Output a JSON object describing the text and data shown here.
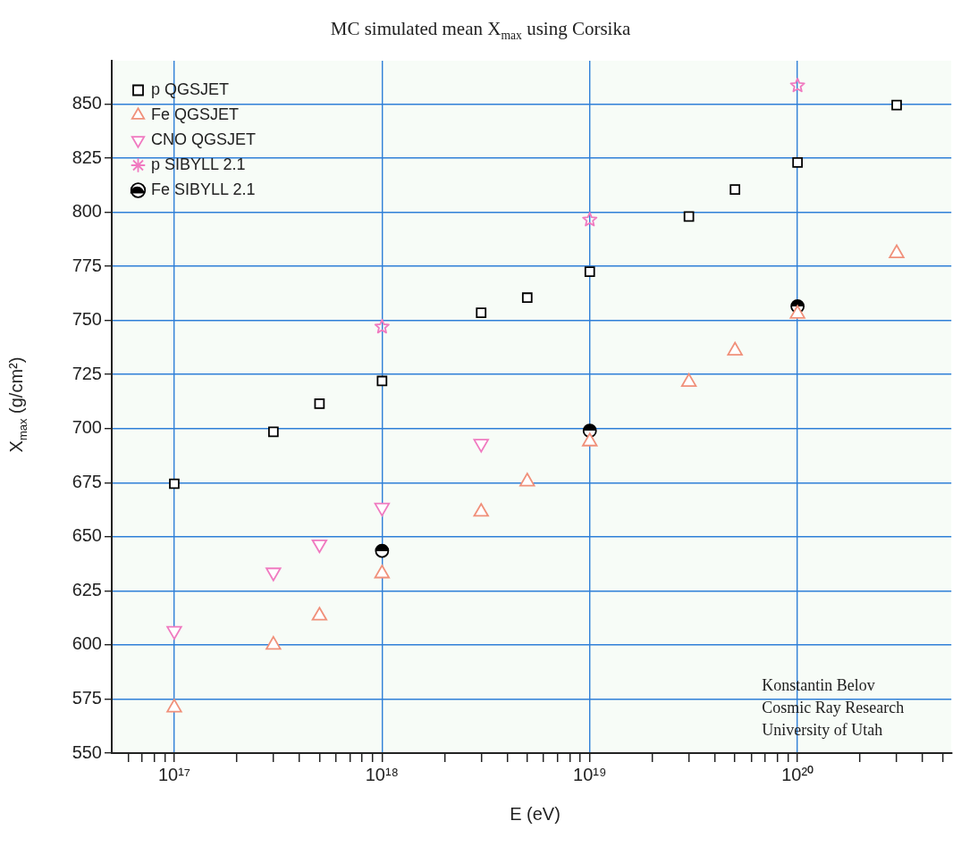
{
  "chart_data": {
    "type": "scatter",
    "title": "MC simulated mean X$_{max}$ using Corsika",
    "xlabel": "E (eV)",
    "ylabel": "X$_{max}$ (g/cm²)",
    "log": "x",
    "grid": true,
    "legend": "top left",
    "xlim": [
      5e+16,
      5.5e+20
    ],
    "xticks": [
      {
        "value": 6e+16,
        "label": null
      },
      {
        "value": 7e+16,
        "label": null
      },
      {
        "value": 8e+16,
        "label": null
      },
      {
        "value": 9e+16,
        "label": null
      },
      {
        "value": 1e+17,
        "label": "10¹⁷"
      },
      {
        "value": 2e+17,
        "label": null
      },
      {
        "value": 3e+17,
        "label": null
      },
      {
        "value": 4e+17,
        "label": null
      },
      {
        "value": 5e+17,
        "label": null
      },
      {
        "value": 6e+17,
        "label": null
      },
      {
        "value": 7e+17,
        "label": null
      },
      {
        "value": 8e+17,
        "label": null
      },
      {
        "value": 9e+17,
        "label": null
      },
      {
        "value": 1e+18,
        "label": "10¹⁸"
      },
      {
        "value": 2e+18,
        "label": null
      },
      {
        "value": 3e+18,
        "label": null
      },
      {
        "value": 4e+18,
        "label": null
      },
      {
        "value": 5e+18,
        "label": null
      },
      {
        "value": 6e+18,
        "label": null
      },
      {
        "value": 7e+18,
        "label": null
      },
      {
        "value": 8e+18,
        "label": null
      },
      {
        "value": 9e+18,
        "label": null
      },
      {
        "value": 1e+19,
        "label": "10¹⁹"
      },
      {
        "value": 2e+19,
        "label": null
      },
      {
        "value": 3e+19,
        "label": null
      },
      {
        "value": 4e+19,
        "label": null
      },
      {
        "value": 5e+19,
        "label": null
      },
      {
        "value": 6e+19,
        "label": null
      },
      {
        "value": 7e+19,
        "label": null
      },
      {
        "value": 8e+19,
        "label": null
      },
      {
        "value": 9e+19,
        "label": null
      },
      {
        "value": 1e+20,
        "label": "10²⁰"
      },
      {
        "value": 2e+20,
        "label": null
      },
      {
        "value": 3e+20,
        "label": null
      },
      {
        "value": 4e+20,
        "label": null
      },
      {
        "value": 5e+20,
        "label": null
      }
    ],
    "ylim": [
      550,
      870
    ],
    "yticks": [
      550,
      575,
      600,
      625,
      650,
      675,
      700,
      725,
      750,
      775,
      800,
      825,
      850
    ],
    "series": [
      {
        "name": "p QGSJET",
        "color": "#000000",
        "marker": "square",
        "x": [
          1e+17,
          3e+17,
          5e+17,
          1e+18,
          3e+18,
          5e+18,
          1e+19,
          3e+19,
          5e+19,
          1e+20,
          3e+20
        ],
        "values": [
          674.5,
          698.5,
          711.5,
          722,
          753.5,
          760.5,
          772.5,
          798,
          810.5,
          823,
          849.5
        ]
      },
      {
        "name": "Fe QGSJET",
        "color": "#f0907a",
        "marker": "triangle",
        "x": [
          1e+17,
          3e+17,
          5e+17,
          1e+18,
          3e+18,
          5e+18,
          1e+19,
          3e+19,
          5e+19,
          1e+20,
          3e+20
        ],
        "values": [
          571,
          600,
          613.5,
          633,
          661.5,
          675.5,
          694,
          721.5,
          736,
          753,
          781
        ]
      },
      {
        "name": "CNO QGSJET",
        "color": "#f07ac0",
        "marker": "triangle_down",
        "x": [
          1e+17,
          3e+17,
          5e+17,
          1e+18,
          3e+18
        ],
        "values": [
          606.5,
          633.5,
          646.5,
          663.5,
          693
        ]
      },
      {
        "name": "p SIBYLL 2.1",
        "color": "#f07ac0",
        "marker": "star",
        "x": [
          1e+18,
          1e+19,
          1e+20
        ],
        "values": [
          747,
          796.5,
          858.5
        ]
      },
      {
        "name": "Fe SIBYLL 2.1",
        "color": "#000000",
        "marker": "circle",
        "x": [
          1e+18,
          1e+19,
          1e+20
        ],
        "values": [
          643.5,
          699,
          756.5
        ]
      }
    ],
    "annotations": [
      "Konstantin Belov",
      "Cosmic Ray Research",
      "University of Utah"
    ]
  }
}
